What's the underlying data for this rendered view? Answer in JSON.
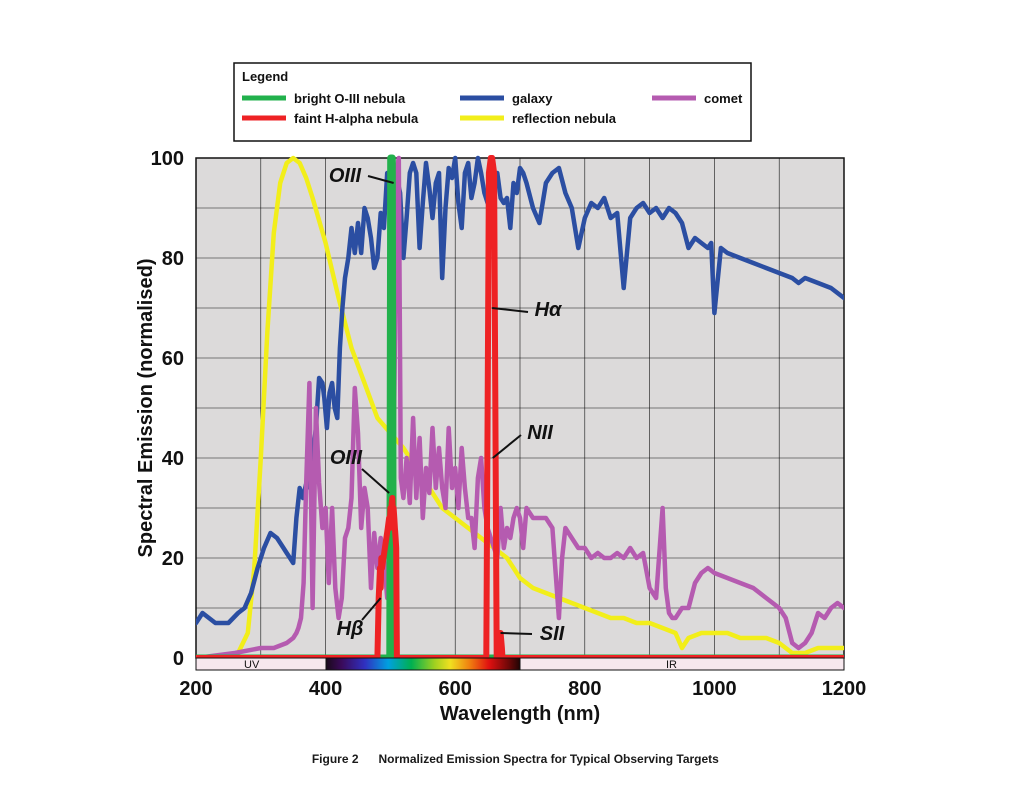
{
  "chart_data": {
    "type": "line",
    "xlabel": "Wavelength (nm)",
    "ylabel": "Spectral Emission (normalised)",
    "xlim": [
      200,
      1200
    ],
    "ylim": [
      0,
      100
    ],
    "xticks": [
      200,
      400,
      600,
      800,
      1000,
      1200
    ],
    "yticks": [
      0,
      20,
      40,
      60,
      80,
      100
    ],
    "grid": true,
    "legend": {
      "title": "Legend",
      "position": "top",
      "entries": [
        {
          "name": "bright O-III nebula",
          "color": "#22b14c"
        },
        {
          "name": "galaxy",
          "color": "#2b4ea2"
        },
        {
          "name": "comet",
          "color": "#b55bb0"
        },
        {
          "name": "faint H-alpha nebula",
          "color": "#ee2224"
        },
        {
          "name": "reflection nebula",
          "color": "#f2ee1a"
        }
      ]
    },
    "band_labels": {
      "uv": "UV",
      "ir": "IR"
    },
    "series": [
      {
        "name": "reflection nebula",
        "color": "#f2ee1a",
        "x": [
          200,
          250,
          265,
          280,
          290,
          300,
          310,
          320,
          330,
          340,
          350,
          360,
          370,
          380,
          400,
          420,
          440,
          460,
          480,
          500,
          520,
          540,
          560,
          580,
          600,
          620,
          640,
          660,
          680,
          700,
          720,
          740,
          760,
          780,
          800,
          820,
          840,
          860,
          880,
          900,
          920,
          940,
          950,
          960,
          980,
          1000,
          1020,
          1040,
          1060,
          1080,
          1100,
          1120,
          1140,
          1160,
          1180,
          1200
        ],
        "y": [
          0,
          0,
          1,
          5,
          18,
          40,
          65,
          85,
          95,
          99,
          100,
          99,
          96,
          92,
          83,
          72,
          62,
          55,
          48,
          45,
          42,
          38,
          34,
          30,
          28,
          26,
          24,
          22,
          20,
          16,
          14,
          13,
          12,
          11,
          10,
          9,
          8,
          8,
          7,
          7,
          6,
          5,
          2,
          4,
          5,
          5,
          5,
          4,
          4,
          4,
          3,
          1,
          1,
          2,
          2,
          2
        ]
      },
      {
        "name": "galaxy",
        "color": "#2b4ea2",
        "x": [
          200,
          210,
          230,
          250,
          265,
          275,
          285,
          295,
          305,
          315,
          325,
          335,
          340,
          345,
          350,
          355,
          360,
          365,
          372,
          376,
          380,
          385,
          390,
          395,
          398,
          402,
          406,
          410,
          414,
          418,
          422,
          426,
          430,
          435,
          440,
          445,
          450,
          455,
          460,
          465,
          470,
          475,
          480,
          485,
          490,
          495,
          500,
          505,
          510,
          515,
          520,
          525,
          530,
          535,
          540,
          545,
          550,
          555,
          560,
          565,
          570,
          575,
          580,
          585,
          590,
          595,
          600,
          605,
          610,
          615,
          620,
          625,
          630,
          635,
          640,
          645,
          650,
          655,
          660,
          665,
          670,
          675,
          680,
          685,
          690,
          695,
          700,
          705,
          710,
          720,
          730,
          740,
          750,
          760,
          770,
          780,
          790,
          800,
          810,
          820,
          830,
          840,
          850,
          860,
          870,
          880,
          890,
          900,
          910,
          920,
          930,
          940,
          950,
          960,
          970,
          980,
          990,
          995,
          1000,
          1010,
          1020,
          1040,
          1060,
          1080,
          1100,
          1120,
          1130,
          1140,
          1160,
          1180,
          1200
        ],
        "y": [
          7,
          9,
          7,
          7,
          9,
          10,
          13,
          18,
          22,
          25,
          24,
          22,
          21,
          20,
          19,
          28,
          34,
          32,
          36,
          34,
          40,
          46,
          56,
          55,
          52,
          46,
          53,
          55,
          50,
          48,
          62,
          70,
          76,
          80,
          86,
          81,
          87,
          81,
          90,
          88,
          84,
          78,
          80,
          89,
          86,
          97,
          91,
          95,
          96,
          93,
          80,
          88,
          97,
          99,
          97,
          82,
          91,
          99,
          94,
          88,
          95,
          97,
          76,
          90,
          98,
          96,
          100,
          91,
          86,
          97,
          99,
          92,
          95,
          100,
          97,
          93,
          91,
          96,
          95,
          97,
          92,
          91,
          92,
          86,
          95,
          93,
          98,
          97,
          95,
          90,
          87,
          95,
          97,
          98,
          93,
          90,
          82,
          88,
          91,
          90,
          92,
          88,
          89,
          74,
          88,
          90,
          91,
          89,
          90,
          88,
          90,
          89,
          87,
          82,
          84,
          83,
          82,
          83,
          69,
          82,
          81,
          80,
          79,
          78,
          77,
          76,
          75,
          76,
          75,
          74,
          72
        ]
      },
      {
        "name": "comet",
        "color": "#b55bb0",
        "x": [
          200,
          260,
          300,
          320,
          340,
          350,
          355,
          358,
          362,
          366,
          370,
          375,
          380,
          385,
          390,
          395,
          400,
          405,
          410,
          415,
          420,
          425,
          430,
          435,
          440,
          445,
          450,
          455,
          460,
          465,
          470,
          475,
          480,
          485,
          490,
          495,
          500,
          505,
          510,
          513,
          516,
          520,
          525,
          530,
          535,
          540,
          545,
          550,
          555,
          560,
          565,
          570,
          575,
          580,
          585,
          590,
          595,
          600,
          605,
          610,
          615,
          620,
          625,
          630,
          635,
          640,
          645,
          650,
          655,
          660,
          665,
          670,
          675,
          680,
          685,
          690,
          695,
          700,
          705,
          710,
          720,
          730,
          740,
          750,
          760,
          765,
          770,
          780,
          790,
          800,
          810,
          820,
          830,
          840,
          850,
          860,
          870,
          880,
          890,
          900,
          910,
          920,
          925,
          930,
          935,
          940,
          950,
          960,
          970,
          980,
          990,
          1000,
          1020,
          1040,
          1060,
          1080,
          1100,
          1110,
          1120,
          1130,
          1140,
          1150,
          1160,
          1170,
          1180,
          1190,
          1200
        ],
        "y": [
          0,
          1,
          2,
          2,
          3,
          4,
          5,
          6,
          8,
          15,
          35,
          55,
          10,
          50,
          35,
          26,
          30,
          15,
          30,
          14,
          8,
          12,
          24,
          26,
          32,
          54,
          45,
          26,
          34,
          30,
          14,
          25,
          18,
          24,
          20,
          12,
          22,
          40,
          98,
          100,
          36,
          32,
          40,
          31,
          48,
          32,
          44,
          28,
          38,
          33,
          46,
          34,
          42,
          34,
          30,
          46,
          34,
          38,
          30,
          42,
          34,
          28,
          28,
          22,
          36,
          40,
          30,
          26,
          24,
          22,
          20,
          30,
          22,
          26,
          24,
          28,
          30,
          28,
          22,
          30,
          28,
          28,
          28,
          26,
          8,
          20,
          26,
          24,
          22,
          22,
          20,
          21,
          20,
          20,
          21,
          20,
          22,
          20,
          21,
          14,
          12,
          30,
          14,
          9,
          8,
          8,
          10,
          10,
          15,
          17,
          18,
          17,
          16,
          15,
          14,
          12,
          10,
          8,
          3,
          2,
          3,
          5,
          9,
          8,
          10,
          11,
          10
        ]
      },
      {
        "name": "bright O-III nebula",
        "color": "#22b14c",
        "x": [
          200,
          499,
          500.5,
          503,
          504.5,
          1200
        ],
        "y": [
          0,
          0,
          100,
          100,
          0,
          0
        ]
      },
      {
        "name": "faint H-alpha nebula",
        "color": "#ee2224",
        "x": [
          200,
          480,
          482,
          484,
          485,
          486,
          487,
          496,
          498,
          499,
          500,
          501,
          502,
          503,
          504,
          505,
          506,
          507,
          508,
          509,
          510,
          648,
          652,
          655,
          656,
          657,
          658,
          660,
          664,
          665,
          667,
          670,
          672,
          673,
          675,
          1200
        ],
        "y": [
          0,
          0,
          12,
          18,
          14,
          20,
          18,
          26,
          28,
          26,
          30,
          28,
          31,
          32,
          29,
          30,
          28,
          26,
          24,
          22,
          0,
          0,
          97,
          100,
          100,
          100,
          99,
          97,
          0,
          3,
          5,
          5,
          2,
          0,
          0,
          0
        ]
      }
    ],
    "annotations": [
      {
        "text": "OIII",
        "italic": true,
        "x": 505,
        "y": 95
      },
      {
        "text": "Hα",
        "italic": true,
        "x": 657,
        "y": 70
      },
      {
        "text": "NII",
        "italic": true,
        "x": 658,
        "y": 40
      },
      {
        "text": "OIII",
        "italic": true,
        "x": 498,
        "y": 33
      },
      {
        "text": "Hβ",
        "italic": true,
        "x": 485,
        "y": 12
      },
      {
        "text": "SII",
        "italic": true,
        "x": 670,
        "y": 5
      }
    ]
  },
  "caption": {
    "figure": "Figure 2",
    "text": "Normalized Emission Spectra for Typical Observing Targets"
  }
}
